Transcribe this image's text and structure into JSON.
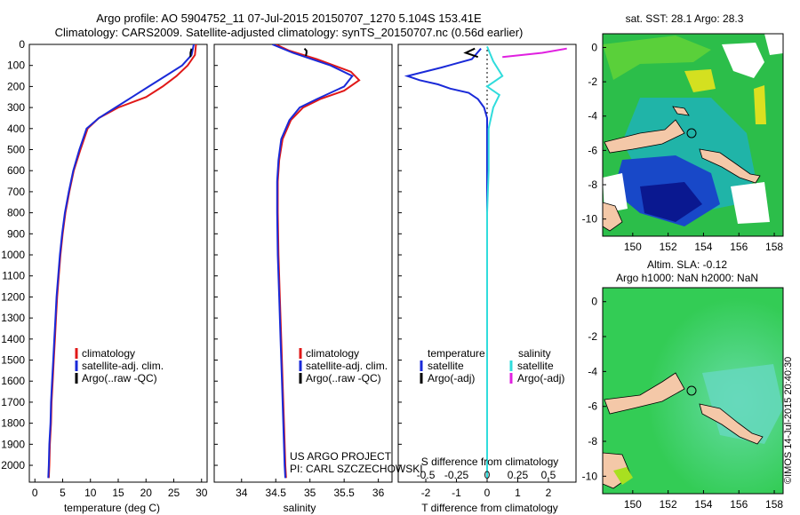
{
  "header": {
    "line1": "Argo profile: AO 5904752_11 07-Jul-2015 20150707_1270 5.104S 153.41E",
    "line2": "Climatology: CARS2009. Satellite-adjusted climatology: synTS_20150707.nc (0.56d earlier)"
  },
  "colors": {
    "clim": "#e01818",
    "sat": "#1a2ad8",
    "argo": "#000000",
    "sat_s": "#30dcdc",
    "argo_s": "#e020e0"
  },
  "credit": "©IMOS 14-Jul-2015 20:40:30",
  "project": {
    "line1": "US ARGO PROJECT",
    "line2": "PI: CARL SZCZECHOWSKI"
  },
  "depth_axis": {
    "ylim": [
      0,
      2080
    ],
    "ticks": [
      0,
      100,
      200,
      300,
      400,
      500,
      600,
      700,
      800,
      900,
      1000,
      1100,
      1200,
      1300,
      1400,
      1500,
      1600,
      1700,
      1800,
      1900,
      2000
    ]
  },
  "legends": {
    "clim": "climatology",
    "sat": "satellite-adj. clim.",
    "argo": "Argo(..raw -QC)",
    "temperature": "temperature",
    "salinity": "salinity",
    "satellite": "satellite",
    "argo_adj": "Argo(-adj)"
  },
  "chart_data": [
    {
      "type": "line",
      "id": "temperature",
      "xlabel": "temperature (deg C)",
      "xlim": [
        -1,
        31
      ],
      "ticks": [
        0,
        5,
        10,
        15,
        20,
        25,
        30
      ],
      "series": [
        {
          "name": "climatology",
          "color_key": "clim",
          "points": [
            [
              29.0,
              0
            ],
            [
              28.8,
              50
            ],
            [
              27.5,
              100
            ],
            [
              25.5,
              150
            ],
            [
              23,
              200
            ],
            [
              20,
              250
            ],
            [
              15,
              300
            ],
            [
              11.5,
              350
            ],
            [
              9.5,
              400
            ],
            [
              8.2,
              500
            ],
            [
              7,
              600
            ],
            [
              6.2,
              700
            ],
            [
              5.5,
              800
            ],
            [
              5,
              900
            ],
            [
              4.6,
              1000
            ],
            [
              4.3,
              1100
            ],
            [
              4,
              1200
            ],
            [
              3.8,
              1300
            ],
            [
              3.6,
              1400
            ],
            [
              3.4,
              1500
            ],
            [
              3.2,
              1600
            ],
            [
              3,
              1700
            ],
            [
              2.9,
              1800
            ],
            [
              2.7,
              1900
            ],
            [
              2.6,
              2000
            ],
            [
              2.5,
              2060
            ]
          ]
        },
        {
          "name": "satellite-adj. clim.",
          "color_key": "sat",
          "points": [
            [
              28.6,
              0
            ],
            [
              28.2,
              50
            ],
            [
              26.5,
              100
            ],
            [
              23.5,
              150
            ],
            [
              20.5,
              200
            ],
            [
              17.5,
              250
            ],
            [
              14.5,
              300
            ],
            [
              11.5,
              350
            ],
            [
              9.3,
              400
            ],
            [
              8,
              500
            ],
            [
              6.9,
              600
            ],
            [
              6.1,
              700
            ],
            [
              5.4,
              800
            ],
            [
              4.9,
              900
            ],
            [
              4.5,
              1000
            ],
            [
              4.2,
              1100
            ],
            [
              3.9,
              1200
            ],
            [
              3.7,
              1300
            ],
            [
              3.5,
              1400
            ],
            [
              3.3,
              1500
            ],
            [
              3.1,
              1600
            ],
            [
              2.9,
              1700
            ],
            [
              2.8,
              1800
            ],
            [
              2.6,
              1900
            ],
            [
              2.5,
              2000
            ],
            [
              2.4,
              2060
            ]
          ]
        },
        {
          "name": "Argo",
          "color_key": "argo",
          "points": [
            [
              28.2,
              20
            ],
            [
              28.0,
              40
            ],
            [
              28.0,
              60
            ]
          ]
        }
      ]
    },
    {
      "type": "line",
      "id": "salinity",
      "xlabel": "salinity",
      "xlim": [
        33.6,
        36.2
      ],
      "ticks": [
        34,
        34.5,
        35,
        35.5,
        36
      ],
      "series": [
        {
          "name": "climatology",
          "color_key": "clim",
          "points": [
            [
              34.5,
              0
            ],
            [
              34.7,
              30
            ],
            [
              35.1,
              70
            ],
            [
              35.6,
              130
            ],
            [
              35.72,
              170
            ],
            [
              35.5,
              220
            ],
            [
              35.15,
              260
            ],
            [
              34.9,
              300
            ],
            [
              34.72,
              360
            ],
            [
              34.6,
              450
            ],
            [
              34.55,
              550
            ],
            [
              34.53,
              650
            ],
            [
              34.53,
              800
            ],
            [
              34.54,
              1000
            ],
            [
              34.56,
              1200
            ],
            [
              34.58,
              1400
            ],
            [
              34.6,
              1600
            ],
            [
              34.62,
              1800
            ],
            [
              34.64,
              2000
            ],
            [
              34.65,
              2060
            ]
          ]
        },
        {
          "name": "satellite-adj. clim.",
          "color_key": "sat",
          "points": [
            [
              34.45,
              0
            ],
            [
              34.75,
              40
            ],
            [
              35.3,
              100
            ],
            [
              35.62,
              150
            ],
            [
              35.5,
              200
            ],
            [
              35.1,
              260
            ],
            [
              34.85,
              300
            ],
            [
              34.7,
              360
            ],
            [
              34.58,
              450
            ],
            [
              34.54,
              550
            ],
            [
              34.52,
              650
            ],
            [
              34.52,
              800
            ],
            [
              34.53,
              1000
            ],
            [
              34.55,
              1200
            ],
            [
              34.57,
              1400
            ],
            [
              34.59,
              1600
            ],
            [
              34.61,
              1800
            ],
            [
              34.63,
              2000
            ],
            [
              34.64,
              2060
            ]
          ]
        },
        {
          "name": "Argo",
          "color_key": "argo",
          "points": [
            [
              34.92,
              20
            ],
            [
              34.95,
              30
            ],
            [
              34.95,
              40
            ],
            [
              34.94,
              55
            ]
          ]
        }
      ]
    },
    {
      "type": "line",
      "id": "difference",
      "xlabel": "T difference from climatology",
      "xlabel_top": "S difference from climatology",
      "xlim": [
        -2.9,
        2.9
      ],
      "ticks": [
        -2,
        -1,
        0,
        1,
        2
      ],
      "top_ticks": [
        {
          "v": -2,
          "label": "-0.5"
        },
        {
          "v": -1,
          "label": "-0.25"
        },
        {
          "v": 0,
          "label": "0"
        },
        {
          "v": 1,
          "label": "0.25"
        },
        {
          "v": 2,
          "label": "0.5"
        }
      ],
      "series": [
        {
          "name": "T satellite",
          "color_key": "sat",
          "points": [
            [
              -0.2,
              20
            ],
            [
              -0.5,
              70
            ],
            [
              -1.5,
              110
            ],
            [
              -2.6,
              150
            ],
            [
              -2.2,
              170
            ],
            [
              -1.6,
              190
            ],
            [
              -1.2,
              210
            ],
            [
              -0.6,
              230
            ],
            [
              -0.3,
              260
            ],
            [
              -0.1,
              300
            ],
            [
              0,
              350
            ],
            [
              0,
              400
            ],
            [
              0,
              2060
            ]
          ]
        },
        {
          "name": "T Argo",
          "color_key": "argo",
          "points": [
            [
              -0.4,
              20
            ],
            [
              -0.7,
              40
            ],
            [
              -0.3,
              60
            ]
          ]
        },
        {
          "name": "S satellite",
          "color_key": "sat_s",
          "points": [
            [
              0,
              10
            ],
            [
              0.2,
              80
            ],
            [
              0.5,
              150
            ],
            [
              0,
              200
            ],
            [
              0.4,
              240
            ],
            [
              0.2,
              300
            ],
            [
              0.05,
              400
            ],
            [
              0.05,
              600
            ],
            [
              0,
              800
            ],
            [
              0,
              2060
            ]
          ]
        },
        {
          "name": "S Argo",
          "color_key": "argo_s",
          "points": [
            [
              2.6,
              20
            ],
            [
              1.8,
              40
            ],
            [
              0.5,
              60
            ]
          ]
        }
      ]
    },
    {
      "type": "heatmap",
      "id": "sst_map",
      "title": "sat. SST: 28.1 Argo: 28.3",
      "xlim": [
        148.3,
        158.5
      ],
      "ylim": [
        -11,
        0.8
      ],
      "xticks": [
        150,
        152,
        154,
        156,
        158
      ],
      "yticks": [
        0,
        -2,
        -4,
        -6,
        -8,
        -10
      ],
      "marker": [
        153.41,
        -5.1
      ]
    },
    {
      "type": "heatmap",
      "id": "sla_map",
      "title": "Altim. SLA: -0.12",
      "subtitle": "Argo h1000: NaN h2000: NaN",
      "xlim": [
        148.3,
        158.5
      ],
      "ylim": [
        -11,
        0.8
      ],
      "xticks": [
        150,
        152,
        154,
        156,
        158
      ],
      "yticks": [
        0,
        -2,
        -4,
        -6,
        -8,
        -10
      ],
      "marker": [
        153.41,
        -5.1
      ]
    }
  ]
}
